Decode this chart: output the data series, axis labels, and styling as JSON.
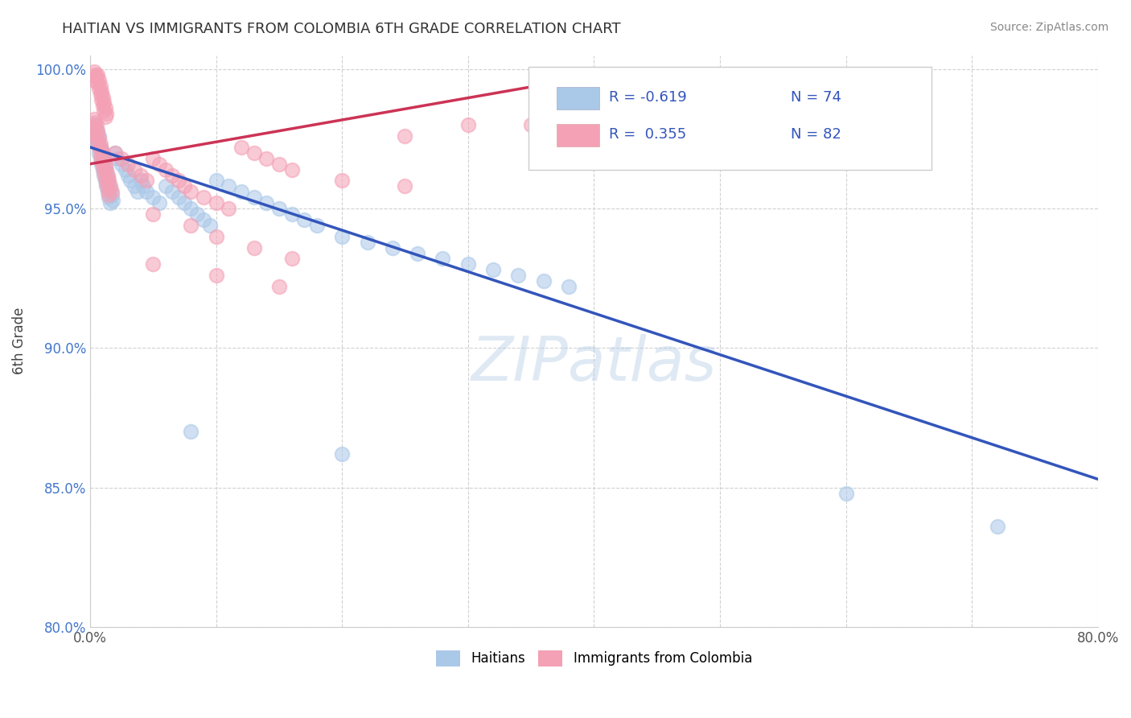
{
  "title": "HAITIAN VS IMMIGRANTS FROM COLOMBIA 6TH GRADE CORRELATION CHART",
  "source_text": "Source: ZipAtlas.com",
  "ylabel": "6th Grade",
  "xlim": [
    0.0,
    0.8
  ],
  "ylim": [
    0.8,
    1.005
  ],
  "xticks": [
    0.0,
    0.1,
    0.2,
    0.3,
    0.4,
    0.5,
    0.6,
    0.7,
    0.8
  ],
  "xticklabels": [
    "0.0%",
    "",
    "",
    "",
    "",
    "",
    "",
    "",
    "80.0%"
  ],
  "yticks": [
    0.8,
    0.85,
    0.9,
    0.95,
    1.0
  ],
  "yticklabels": [
    "80.0%",
    "85.0%",
    "90.0%",
    "95.0%",
    "100.0%"
  ],
  "legend_R_blue": "-0.619",
  "legend_N_blue": "74",
  "legend_R_pink": "0.355",
  "legend_N_pink": "82",
  "blue_color": "#aac8e8",
  "pink_color": "#f4a0b5",
  "blue_line_color": "#3355bb",
  "pink_line_color": "#cc3355",
  "blue_line_x": [
    0.0,
    0.8
  ],
  "blue_line_y": [
    0.972,
    0.853
  ],
  "pink_line_x": [
    0.0,
    0.38
  ],
  "pink_line_y": [
    0.966,
    0.996
  ],
  "haitians_scatter": [
    [
      0.003,
      0.98
    ],
    [
      0.004,
      0.979
    ],
    [
      0.005,
      0.978
    ],
    [
      0.003,
      0.976
    ],
    [
      0.006,
      0.977
    ],
    [
      0.004,
      0.975
    ],
    [
      0.005,
      0.974
    ],
    [
      0.007,
      0.976
    ],
    [
      0.006,
      0.973
    ],
    [
      0.008,
      0.972
    ],
    [
      0.007,
      0.97
    ],
    [
      0.009,
      0.971
    ],
    [
      0.01,
      0.969
    ],
    [
      0.008,
      0.968
    ],
    [
      0.011,
      0.967
    ],
    [
      0.009,
      0.966
    ],
    [
      0.012,
      0.965
    ],
    [
      0.01,
      0.964
    ],
    [
      0.013,
      0.963
    ],
    [
      0.011,
      0.962
    ],
    [
      0.014,
      0.961
    ],
    [
      0.012,
      0.96
    ],
    [
      0.015,
      0.959
    ],
    [
      0.013,
      0.958
    ],
    [
      0.016,
      0.957
    ],
    [
      0.014,
      0.956
    ],
    [
      0.017,
      0.955
    ],
    [
      0.015,
      0.954
    ],
    [
      0.018,
      0.953
    ],
    [
      0.016,
      0.952
    ],
    [
      0.02,
      0.97
    ],
    [
      0.022,
      0.968
    ],
    [
      0.025,
      0.966
    ],
    [
      0.028,
      0.964
    ],
    [
      0.03,
      0.962
    ],
    [
      0.032,
      0.96
    ],
    [
      0.035,
      0.958
    ],
    [
      0.038,
      0.956
    ],
    [
      0.04,
      0.96
    ],
    [
      0.042,
      0.958
    ],
    [
      0.045,
      0.956
    ],
    [
      0.05,
      0.954
    ],
    [
      0.055,
      0.952
    ],
    [
      0.06,
      0.958
    ],
    [
      0.065,
      0.956
    ],
    [
      0.07,
      0.954
    ],
    [
      0.075,
      0.952
    ],
    [
      0.08,
      0.95
    ],
    [
      0.085,
      0.948
    ],
    [
      0.09,
      0.946
    ],
    [
      0.095,
      0.944
    ],
    [
      0.1,
      0.96
    ],
    [
      0.11,
      0.958
    ],
    [
      0.12,
      0.956
    ],
    [
      0.13,
      0.954
    ],
    [
      0.14,
      0.952
    ],
    [
      0.15,
      0.95
    ],
    [
      0.16,
      0.948
    ],
    [
      0.17,
      0.946
    ],
    [
      0.18,
      0.944
    ],
    [
      0.2,
      0.94
    ],
    [
      0.22,
      0.938
    ],
    [
      0.24,
      0.936
    ],
    [
      0.26,
      0.934
    ],
    [
      0.28,
      0.932
    ],
    [
      0.3,
      0.93
    ],
    [
      0.32,
      0.928
    ],
    [
      0.34,
      0.926
    ],
    [
      0.36,
      0.924
    ],
    [
      0.38,
      0.922
    ],
    [
      0.08,
      0.87
    ],
    [
      0.2,
      0.862
    ],
    [
      0.6,
      0.848
    ],
    [
      0.72,
      0.836
    ]
  ],
  "colombia_scatter": [
    [
      0.003,
      0.999
    ],
    [
      0.004,
      0.998
    ],
    [
      0.005,
      0.997
    ],
    [
      0.004,
      0.996
    ],
    [
      0.006,
      0.998
    ],
    [
      0.005,
      0.997
    ],
    [
      0.007,
      0.996
    ],
    [
      0.006,
      0.995
    ],
    [
      0.008,
      0.994
    ],
    [
      0.007,
      0.993
    ],
    [
      0.009,
      0.992
    ],
    [
      0.008,
      0.991
    ],
    [
      0.01,
      0.99
    ],
    [
      0.009,
      0.989
    ],
    [
      0.011,
      0.988
    ],
    [
      0.01,
      0.987
    ],
    [
      0.012,
      0.986
    ],
    [
      0.011,
      0.985
    ],
    [
      0.013,
      0.984
    ],
    [
      0.012,
      0.983
    ],
    [
      0.003,
      0.982
    ],
    [
      0.004,
      0.981
    ],
    [
      0.005,
      0.98
    ],
    [
      0.003,
      0.979
    ],
    [
      0.006,
      0.978
    ],
    [
      0.004,
      0.977
    ],
    [
      0.005,
      0.976
    ],
    [
      0.007,
      0.975
    ],
    [
      0.006,
      0.974
    ],
    [
      0.008,
      0.973
    ],
    [
      0.007,
      0.972
    ],
    [
      0.009,
      0.971
    ],
    [
      0.01,
      0.97
    ],
    [
      0.008,
      0.969
    ],
    [
      0.011,
      0.968
    ],
    [
      0.009,
      0.967
    ],
    [
      0.012,
      0.966
    ],
    [
      0.01,
      0.965
    ],
    [
      0.013,
      0.964
    ],
    [
      0.011,
      0.963
    ],
    [
      0.014,
      0.962
    ],
    [
      0.012,
      0.961
    ],
    [
      0.015,
      0.96
    ],
    [
      0.013,
      0.959
    ],
    [
      0.016,
      0.958
    ],
    [
      0.014,
      0.957
    ],
    [
      0.017,
      0.956
    ],
    [
      0.015,
      0.955
    ],
    [
      0.02,
      0.97
    ],
    [
      0.025,
      0.968
    ],
    [
      0.03,
      0.966
    ],
    [
      0.035,
      0.964
    ],
    [
      0.04,
      0.962
    ],
    [
      0.045,
      0.96
    ],
    [
      0.05,
      0.968
    ],
    [
      0.055,
      0.966
    ],
    [
      0.06,
      0.964
    ],
    [
      0.065,
      0.962
    ],
    [
      0.07,
      0.96
    ],
    [
      0.075,
      0.958
    ],
    [
      0.08,
      0.956
    ],
    [
      0.09,
      0.954
    ],
    [
      0.1,
      0.952
    ],
    [
      0.11,
      0.95
    ],
    [
      0.12,
      0.972
    ],
    [
      0.13,
      0.97
    ],
    [
      0.14,
      0.968
    ],
    [
      0.15,
      0.966
    ],
    [
      0.16,
      0.964
    ],
    [
      0.05,
      0.948
    ],
    [
      0.08,
      0.944
    ],
    [
      0.1,
      0.94
    ],
    [
      0.13,
      0.936
    ],
    [
      0.16,
      0.932
    ],
    [
      0.2,
      0.96
    ],
    [
      0.25,
      0.958
    ],
    [
      0.3,
      0.98
    ],
    [
      0.05,
      0.93
    ],
    [
      0.1,
      0.926
    ],
    [
      0.15,
      0.922
    ],
    [
      0.25,
      0.976
    ],
    [
      0.35,
      0.98
    ]
  ]
}
